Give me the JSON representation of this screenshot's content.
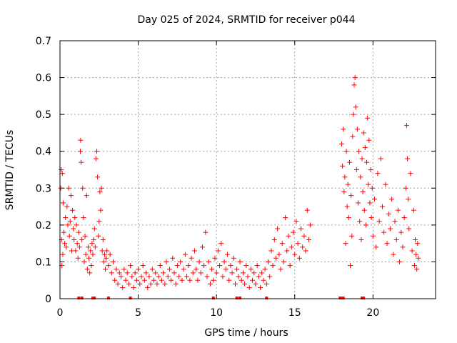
{
  "chart_data": {
    "type": "scatter",
    "title": "Day 025 of 2024, SRMTID for receiver p044",
    "xlabel": "GPS time / hours",
    "ylabel": "SRMTID / TECUs",
    "xlim": [
      0,
      24
    ],
    "ylim": [
      0,
      0.7
    ],
    "xticks": [
      0,
      5,
      10,
      15,
      20
    ],
    "yticks": [
      0,
      0.1,
      0.2,
      0.3,
      0.4,
      0.5,
      0.6,
      0.7
    ],
    "xtick_labels": [
      "0",
      "5",
      "10",
      "15",
      "20"
    ],
    "ytick_labels": [
      "0",
      "0.1",
      "0.2",
      "0.3",
      "0.4",
      "0.5",
      "0.6",
      "0.7"
    ],
    "grid": true,
    "marker": "+",
    "color": "#ff0000",
    "series": [
      {
        "name": "SRMTID",
        "points": [
          [
            0.05,
            0.3
          ],
          [
            0.08,
            0.35
          ],
          [
            0.1,
            0.16
          ],
          [
            0.12,
            0.09
          ],
          [
            0.15,
            0.34
          ],
          [
            0.18,
            0.12
          ],
          [
            0.2,
            0.26
          ],
          [
            0.25,
            0.18
          ],
          [
            0.3,
            0.15
          ],
          [
            0.35,
            0.22
          ],
          [
            0.4,
            0.14
          ],
          [
            0.45,
            0.25
          ],
          [
            0.5,
            0.2
          ],
          [
            0.55,
            0.3
          ],
          [
            0.6,
            0.17
          ],
          [
            0.65,
            0.21
          ],
          [
            0.7,
            0.28
          ],
          [
            0.75,
            0.13
          ],
          [
            0.8,
            0.24
          ],
          [
            0.85,
            0.19
          ],
          [
            0.9,
            0.16
          ],
          [
            0.95,
            0.22
          ],
          [
            1.0,
            0.13
          ],
          [
            1.05,
            0.2
          ],
          [
            1.1,
            0.15
          ],
          [
            1.15,
            0.11
          ],
          [
            1.2,
            0.18
          ],
          [
            1.25,
            0.14
          ],
          [
            1.3,
            0.4
          ],
          [
            1.32,
            0.43
          ],
          [
            1.35,
            0.37
          ],
          [
            1.4,
            0.16
          ],
          [
            1.45,
            0.3
          ],
          [
            1.5,
            0.22
          ],
          [
            1.55,
            0.1
          ],
          [
            1.6,
            0.17
          ],
          [
            1.65,
            0.12
          ],
          [
            1.7,
            0.28
          ],
          [
            1.75,
            0.08
          ],
          [
            1.8,
            0.14
          ],
          [
            1.85,
            0.11
          ],
          [
            1.9,
            0.07
          ],
          [
            1.95,
            0.13
          ],
          [
            2.0,
            0.09
          ],
          [
            2.05,
            0.15
          ],
          [
            2.1,
            0.12
          ],
          [
            2.15,
            0.16
          ],
          [
            2.2,
            0.19
          ],
          [
            2.25,
            0.14
          ],
          [
            2.3,
            0.38
          ],
          [
            2.35,
            0.4
          ],
          [
            2.4,
            0.33
          ],
          [
            2.45,
            0.17
          ],
          [
            2.5,
            0.21
          ],
          [
            2.55,
            0.29
          ],
          [
            2.6,
            0.24
          ],
          [
            2.65,
            0.3
          ],
          [
            2.7,
            0.13
          ],
          [
            2.75,
            0.16
          ],
          [
            2.8,
            0.1
          ],
          [
            2.85,
            0.12
          ],
          [
            2.9,
            0.08
          ],
          [
            2.95,
            0.11
          ],
          [
            3.0,
            0.13
          ],
          [
            3.1,
            0.09
          ],
          [
            3.2,
            0.12
          ],
          [
            3.3,
            0.07
          ],
          [
            3.4,
            0.1
          ],
          [
            3.5,
            0.05
          ],
          [
            3.6,
            0.08
          ],
          [
            3.7,
            0.04
          ],
          [
            3.8,
            0.07
          ],
          [
            3.9,
            0.06
          ],
          [
            4.0,
            0.03
          ],
          [
            4.1,
            0.08
          ],
          [
            4.2,
            0.05
          ],
          [
            4.3,
            0.07
          ],
          [
            4.4,
            0.04
          ],
          [
            4.5,
            0.09
          ],
          [
            4.6,
            0.06
          ],
          [
            4.7,
            0.03
          ],
          [
            4.8,
            0.07
          ],
          [
            4.9,
            0.05
          ],
          [
            5.0,
            0.08
          ],
          [
            5.1,
            0.04
          ],
          [
            5.2,
            0.06
          ],
          [
            5.3,
            0.09
          ],
          [
            5.4,
            0.05
          ],
          [
            5.5,
            0.07
          ],
          [
            5.6,
            0.03
          ],
          [
            5.7,
            0.06
          ],
          [
            5.8,
            0.04
          ],
          [
            5.9,
            0.08
          ],
          [
            6.0,
            0.05
          ],
          [
            6.1,
            0.07
          ],
          [
            6.2,
            0.04
          ],
          [
            6.3,
            0.06
          ],
          [
            6.4,
            0.09
          ],
          [
            6.5,
            0.05
          ],
          [
            6.6,
            0.07
          ],
          [
            6.7,
            0.04
          ],
          [
            6.8,
            0.1
          ],
          [
            6.9,
            0.06
          ],
          [
            7.0,
            0.08
          ],
          [
            7.1,
            0.05
          ],
          [
            7.2,
            0.11
          ],
          [
            7.3,
            0.07
          ],
          [
            7.4,
            0.04
          ],
          [
            7.5,
            0.09
          ],
          [
            7.6,
            0.06
          ],
          [
            7.7,
            0.1
          ],
          [
            7.8,
            0.05
          ],
          [
            7.9,
            0.08
          ],
          [
            8.0,
            0.12
          ],
          [
            8.1,
            0.06
          ],
          [
            8.2,
            0.09
          ],
          [
            8.3,
            0.05
          ],
          [
            8.4,
            0.11
          ],
          [
            8.5,
            0.07
          ],
          [
            8.6,
            0.13
          ],
          [
            8.7,
            0.08
          ],
          [
            8.8,
            0.05
          ],
          [
            8.9,
            0.1
          ],
          [
            9.0,
            0.07
          ],
          [
            9.1,
            0.14
          ],
          [
            9.2,
            0.09
          ],
          [
            9.3,
            0.18
          ],
          [
            9.4,
            0.06
          ],
          [
            9.5,
            0.1
          ],
          [
            9.6,
            0.04
          ],
          [
            9.7,
            0.08
          ],
          [
            9.8,
            0.05
          ],
          [
            9.9,
            0.11
          ],
          [
            10.0,
            0.07
          ],
          [
            10.1,
            0.13
          ],
          [
            10.2,
            0.09
          ],
          [
            10.3,
            0.15
          ],
          [
            10.4,
            0.06
          ],
          [
            10.5,
            0.1
          ],
          [
            10.6,
            0.08
          ],
          [
            10.7,
            0.12
          ],
          [
            10.8,
            0.05
          ],
          [
            10.9,
            0.09
          ],
          [
            11.0,
            0.07
          ],
          [
            11.1,
            0.11
          ],
          [
            11.2,
            0.04
          ],
          [
            11.3,
            0.08
          ],
          [
            11.4,
            0.06
          ],
          [
            11.5,
            0.1
          ],
          [
            11.6,
            0.05
          ],
          [
            11.7,
            0.07
          ],
          [
            11.8,
            0.04
          ],
          [
            11.9,
            0.09
          ],
          [
            12.0,
            0.06
          ],
          [
            12.1,
            0.03
          ],
          [
            12.2,
            0.08
          ],
          [
            12.3,
            0.05
          ],
          [
            12.4,
            0.07
          ],
          [
            12.5,
            0.04
          ],
          [
            12.6,
            0.09
          ],
          [
            12.7,
            0.06
          ],
          [
            12.8,
            0.03
          ],
          [
            12.9,
            0.07
          ],
          [
            13.0,
            0.05
          ],
          [
            13.1,
            0.08
          ],
          [
            13.2,
            0.04
          ],
          [
            13.3,
            0.1
          ],
          [
            13.4,
            0.06
          ],
          [
            13.5,
            0.13
          ],
          [
            13.6,
            0.09
          ],
          [
            13.7,
            0.16
          ],
          [
            13.8,
            0.11
          ],
          [
            13.9,
            0.19
          ],
          [
            14.0,
            0.12
          ],
          [
            14.1,
            0.08
          ],
          [
            14.2,
            0.15
          ],
          [
            14.3,
            0.1
          ],
          [
            14.4,
            0.22
          ],
          [
            14.5,
            0.13
          ],
          [
            14.6,
            0.17
          ],
          [
            14.7,
            0.09
          ],
          [
            14.8,
            0.14
          ],
          [
            14.9,
            0.18
          ],
          [
            15.0,
            0.12
          ],
          [
            15.1,
            0.21
          ],
          [
            15.2,
            0.15
          ],
          [
            15.3,
            0.11
          ],
          [
            15.4,
            0.19
          ],
          [
            15.5,
            0.14
          ],
          [
            15.6,
            0.17
          ],
          [
            15.7,
            0.13
          ],
          [
            15.8,
            0.24
          ],
          [
            15.9,
            0.16
          ],
          [
            16.0,
            0.2
          ],
          [
            18.0,
            0.42
          ],
          [
            18.05,
            0.36
          ],
          [
            18.1,
            0.46
          ],
          [
            18.15,
            0.29
          ],
          [
            18.2,
            0.33
          ],
          [
            18.25,
            0.15
          ],
          [
            18.3,
            0.4
          ],
          [
            18.35,
            0.25
          ],
          [
            18.4,
            0.31
          ],
          [
            18.45,
            0.22
          ],
          [
            18.5,
            0.37
          ],
          [
            18.55,
            0.09
          ],
          [
            18.6,
            0.28
          ],
          [
            18.65,
            0.17
          ],
          [
            18.7,
            0.44
          ],
          [
            18.75,
            0.5
          ],
          [
            18.8,
            0.58
          ],
          [
            18.85,
            0.6
          ],
          [
            18.9,
            0.52
          ],
          [
            18.95,
            0.35
          ],
          [
            19.0,
            0.46
          ],
          [
            19.05,
            0.26
          ],
          [
            19.1,
            0.4
          ],
          [
            19.15,
            0.21
          ],
          [
            19.2,
            0.33
          ],
          [
            19.25,
            0.16
          ],
          [
            19.3,
            0.38
          ],
          [
            19.35,
            0.29
          ],
          [
            19.4,
            0.45
          ],
          [
            19.45,
            0.24
          ],
          [
            19.5,
            0.41
          ],
          [
            19.55,
            0.2
          ],
          [
            19.6,
            0.37
          ],
          [
            19.65,
            0.49
          ],
          [
            19.7,
            0.31
          ],
          [
            19.75,
            0.43
          ],
          [
            19.8,
            0.26
          ],
          [
            19.85,
            0.35
          ],
          [
            19.9,
            0.22
          ],
          [
            19.95,
            0.3
          ],
          [
            20.0,
            0.17
          ],
          [
            20.1,
            0.27
          ],
          [
            20.2,
            0.14
          ],
          [
            20.3,
            0.34
          ],
          [
            20.4,
            0.21
          ],
          [
            20.5,
            0.38
          ],
          [
            20.6,
            0.25
          ],
          [
            20.7,
            0.18
          ],
          [
            20.8,
            0.31
          ],
          [
            20.9,
            0.15
          ],
          [
            21.0,
            0.23
          ],
          [
            21.1,
            0.19
          ],
          [
            21.2,
            0.27
          ],
          [
            21.3,
            0.12
          ],
          [
            21.4,
            0.21
          ],
          [
            21.5,
            0.16
          ],
          [
            21.6,
            0.24
          ],
          [
            21.7,
            0.1
          ],
          [
            21.8,
            0.18
          ],
          [
            21.9,
            0.14
          ],
          [
            22.0,
            0.22
          ],
          [
            22.1,
            0.3
          ],
          [
            22.15,
            0.47
          ],
          [
            22.2,
            0.38
          ],
          [
            22.25,
            0.27
          ],
          [
            22.3,
            0.19
          ],
          [
            22.4,
            0.34
          ],
          [
            22.5,
            0.13
          ],
          [
            22.6,
            0.24
          ],
          [
            22.65,
            0.09
          ],
          [
            22.7,
            0.16
          ],
          [
            22.75,
            0.12
          ],
          [
            22.8,
            0.08
          ],
          [
            22.85,
            0.15
          ],
          [
            22.9,
            0.11
          ]
        ]
      }
    ],
    "baseline_markers": [
      1.2,
      1.4,
      2.1,
      2.2,
      3.1,
      4.5,
      9.8,
      11.3,
      11.5,
      13.2,
      17.9,
      18.0,
      18.1,
      19.3,
      19.4
    ]
  }
}
